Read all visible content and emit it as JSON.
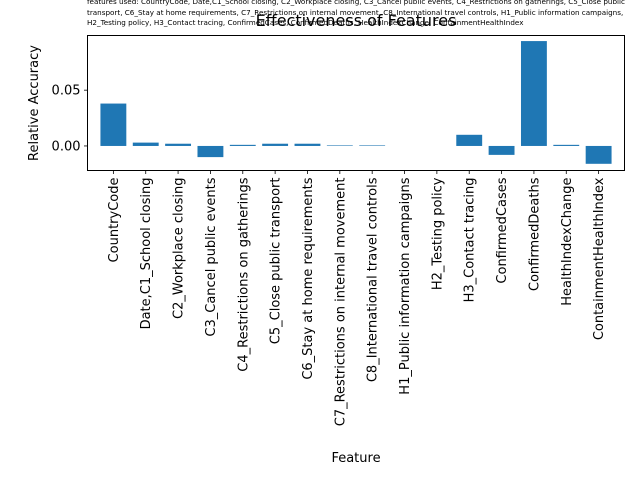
{
  "features_note": "features used: CountryCode, Date,C1_School closing, C2_Workplace closing, C3_Cancel public events, C4_Restrictions on gatherings, C5_Close public transport, C6_Stay at home requirements, C7_Restrictions on internal movement, C8_International travel controls, H1_Public information campaigns, H2_Testing policy, H3_Contact tracing, ConfirmedCases, ConfirmedDeaths, HealthIndexChange, ContainmentHealthIndex",
  "colors": {
    "bar": "#1f77b4",
    "axis": "#000000",
    "background": "#ffffff"
  },
  "chart_data": {
    "type": "bar",
    "title": "Effectiveness of Features",
    "xlabel": "Feature",
    "ylabel": "Relative Accuracy",
    "categories": [
      "CountryCode",
      "Date,C1_School closing",
      "C2_Workplace closing",
      "C3_Cancel public events",
      "C4_Restrictions on gatherings",
      "C5_Close public transport",
      "C6_Stay at home requirements",
      "C7_Restrictions on internal movement",
      "C8_International travel controls",
      "H1_Public information campaigns",
      "H2_Testing policy",
      "H3_Contact tracing",
      "ConfirmedCases",
      "ConfirmedDeaths",
      "HealthIndexChange",
      "ContainmentHealthIndex"
    ],
    "values": [
      0.038,
      0.003,
      0.002,
      -0.01,
      0.001,
      0.002,
      0.002,
      0.0005,
      0.0005,
      0.0,
      0.0,
      0.01,
      -0.008,
      0.094,
      0.001,
      -0.016
    ],
    "ylim": [
      -0.022,
      0.099
    ],
    "yticks": [
      0.0,
      0.05
    ],
    "ytick_labels": [
      "0.00",
      "0.05"
    ],
    "grid": false,
    "legend": "none"
  }
}
